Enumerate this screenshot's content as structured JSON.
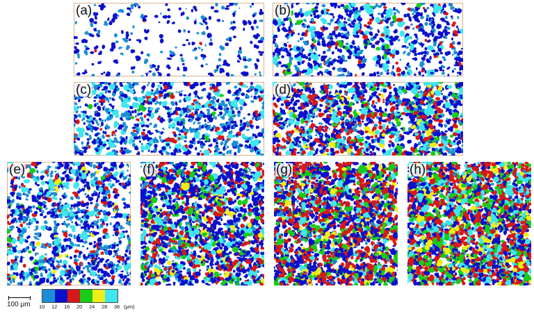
{
  "panels": [
    {
      "label": "(a)",
      "density": 0.12,
      "mix": [
        0.4,
        0.58,
        0.02,
        0.0,
        0.0,
        0.0
      ]
    },
    {
      "label": "(b)",
      "density": 0.35,
      "mix": [
        0.25,
        0.55,
        0.08,
        0.03,
        0.0,
        0.09
      ]
    },
    {
      "label": "(c)",
      "density": 0.4,
      "mix": [
        0.4,
        0.42,
        0.08,
        0.02,
        0.0,
        0.08
      ]
    },
    {
      "label": "(d)",
      "density": 0.6,
      "mix": [
        0.2,
        0.45,
        0.17,
        0.06,
        0.03,
        0.09
      ]
    },
    {
      "label": "(e)",
      "density": 0.45,
      "mix": [
        0.35,
        0.47,
        0.07,
        0.02,
        0.01,
        0.08
      ]
    },
    {
      "label": "(f)",
      "density": 0.7,
      "mix": [
        0.1,
        0.55,
        0.16,
        0.1,
        0.03,
        0.06
      ]
    },
    {
      "label": "(g)",
      "density": 0.85,
      "mix": [
        0.05,
        0.45,
        0.3,
        0.12,
        0.04,
        0.04
      ]
    },
    {
      "label": "(h)",
      "density": 0.95,
      "mix": [
        0.03,
        0.35,
        0.32,
        0.14,
        0.06,
        0.1
      ]
    }
  ],
  "scale_bar": {
    "label": "100 μm"
  },
  "colorbar": {
    "colors": [
      "#1a8fd4",
      "#0a10cc",
      "#d81818",
      "#18cc18",
      "#eeee18",
      "#3fe6ee"
    ],
    "ticks": [
      "10",
      "12",
      "16",
      "20",
      "24",
      "28",
      "36"
    ],
    "unit": "(μm)"
  }
}
